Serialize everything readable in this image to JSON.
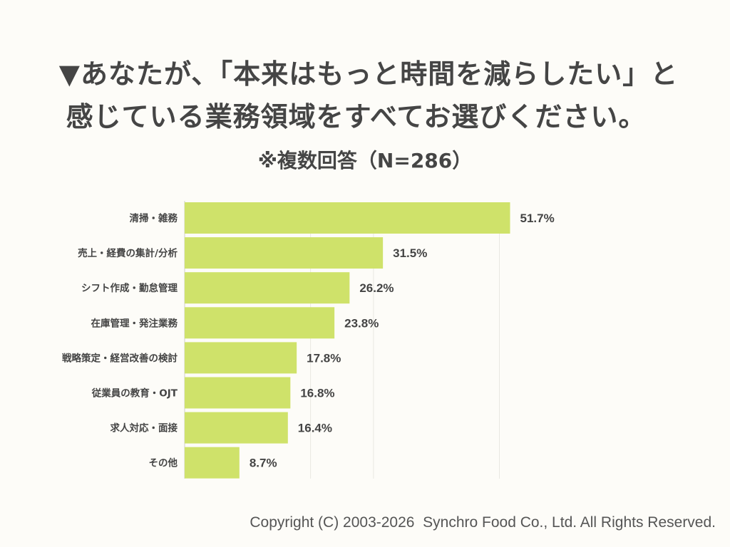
{
  "title": {
    "line1": "▼あなたが、「本来はもっと時間を減らしたい」と",
    "line2": "感じている業務領域をすべてお選びください。"
  },
  "subtitle": "※複数回答（N=286）",
  "footer": "Copyright (C) 2003-2026  Synchro Food Co., Ltd. All Rights Reserved.",
  "colors": {
    "bar": "#cfe26a",
    "grid": "#e9e8e2",
    "axis": "#d0d0c8",
    "text": "#444444"
  },
  "chart_data": {
    "type": "bar",
    "orientation": "horizontal",
    "categories": [
      "清掃・雑務",
      "売上・経費の集計/分析",
      "シフト作成・勤怠管理",
      "在庫管理・発注業務",
      "戦略策定・経営改善の検討",
      "従業員の教育・OJT",
      "求人対応・面接",
      "その他"
    ],
    "values": [
      51.7,
      31.5,
      26.2,
      23.8,
      17.8,
      16.8,
      16.4,
      8.7
    ],
    "value_labels": [
      "51.7%",
      "31.5%",
      "26.2%",
      "23.8%",
      "17.8%",
      "16.8%",
      "16.4%",
      "8.7%"
    ],
    "xlim": [
      0,
      60
    ],
    "grid": true,
    "legend": "none"
  }
}
